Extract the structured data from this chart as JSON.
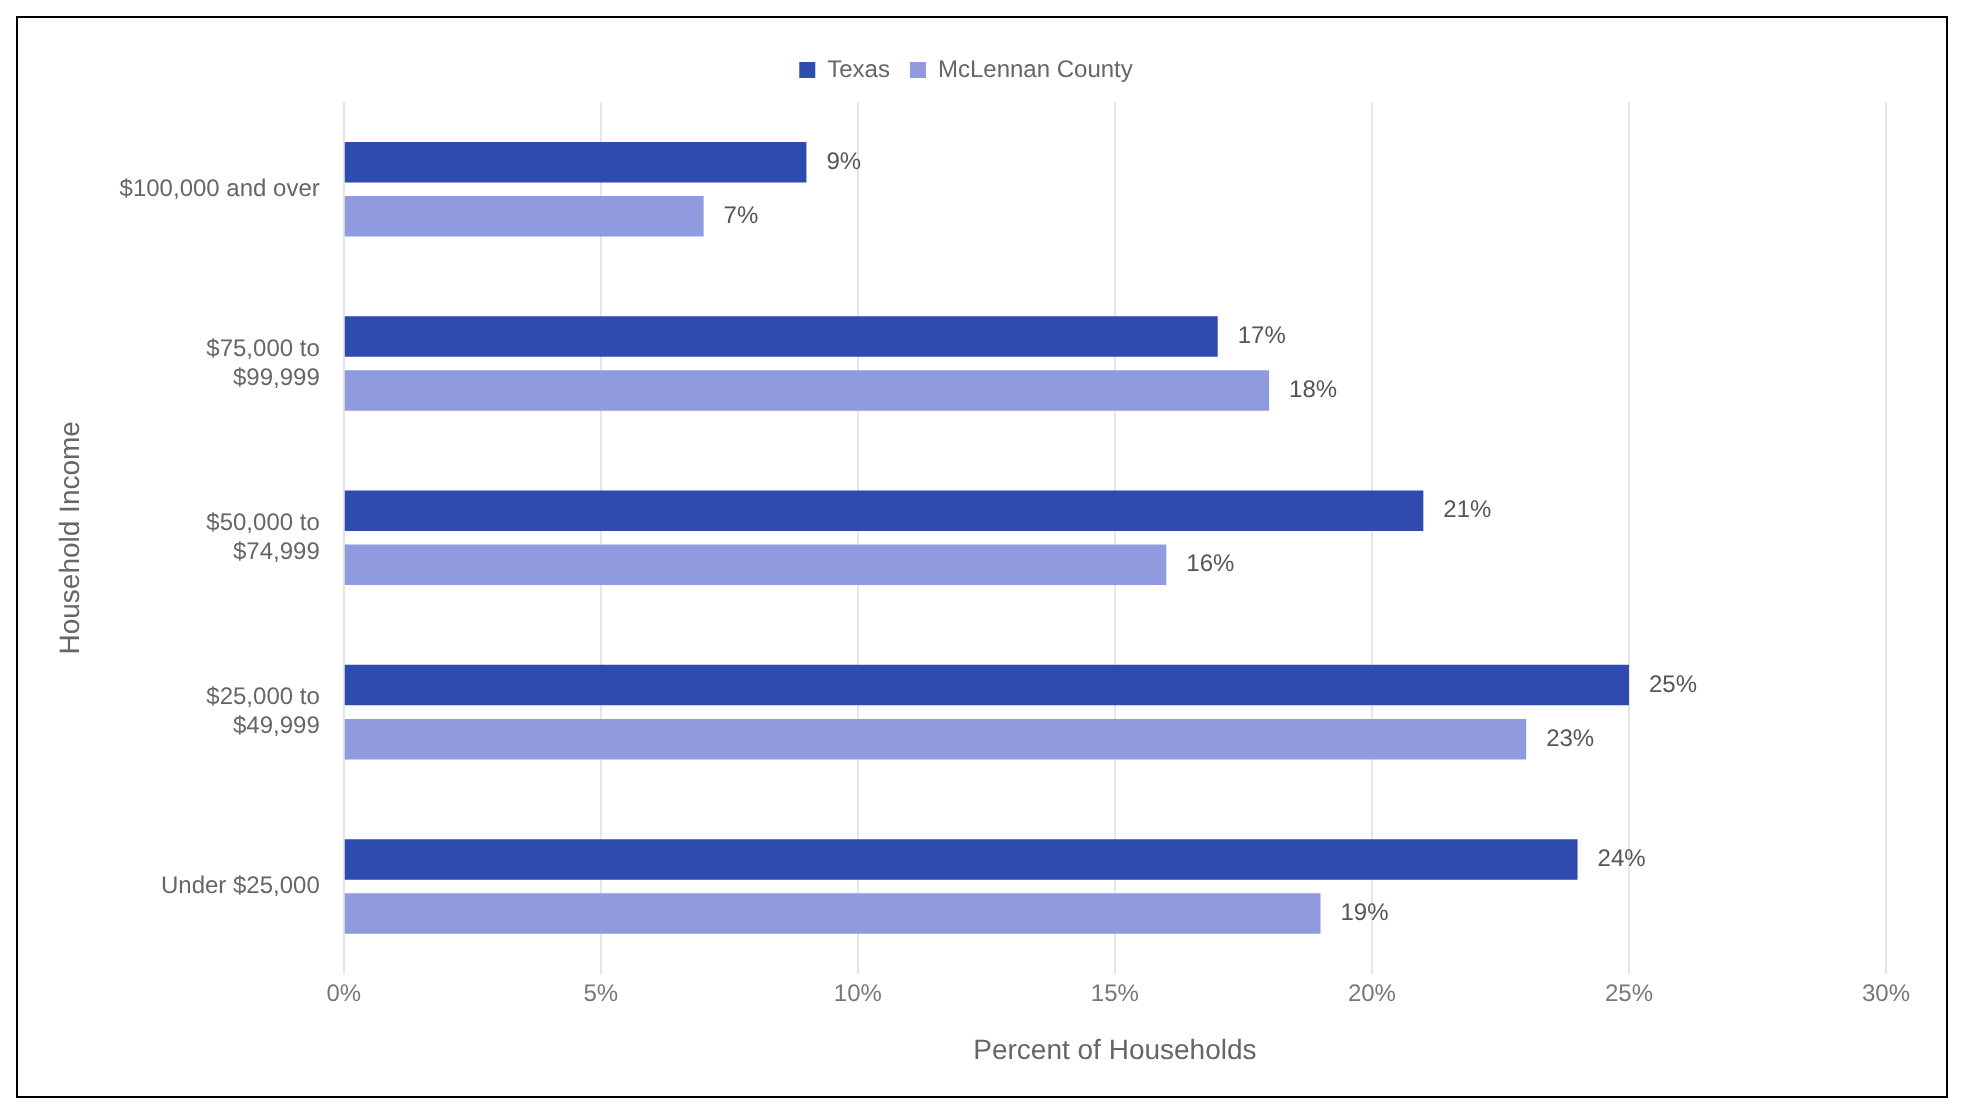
{
  "chart_data": {
    "type": "bar",
    "orientation": "horizontal",
    "xlabel": "Percent of Households",
    "ylabel": "Household Income",
    "categories": [
      "$100,000 and over",
      "$75,000 to $99,999",
      "$50,000 to $74,999",
      "$25,000 to $49,999",
      "Under $25,000"
    ],
    "series": [
      {
        "name": "Texas",
        "color": "#2f4bb0",
        "values": [
          9,
          17,
          21,
          25,
          24
        ],
        "value_labels": [
          "9%",
          "17%",
          "21%",
          "25%",
          "24%"
        ]
      },
      {
        "name": "McLennan County",
        "color": "#8f9bde",
        "values": [
          7,
          18,
          16,
          23,
          19
        ],
        "value_labels": [
          "7%",
          "18%",
          "16%",
          "23%",
          "19%"
        ]
      }
    ],
    "xlim": [
      0,
      30
    ],
    "xticks": [
      {
        "value": 0,
        "label": "0%"
      },
      {
        "value": 5,
        "label": "5%"
      },
      {
        "value": 10,
        "label": "10%"
      },
      {
        "value": 15,
        "label": "15%"
      },
      {
        "value": 20,
        "label": "20%"
      },
      {
        "value": 25,
        "label": "25%"
      },
      {
        "value": 30,
        "label": "30%"
      }
    ],
    "grid": "x",
    "legend": "top"
  }
}
